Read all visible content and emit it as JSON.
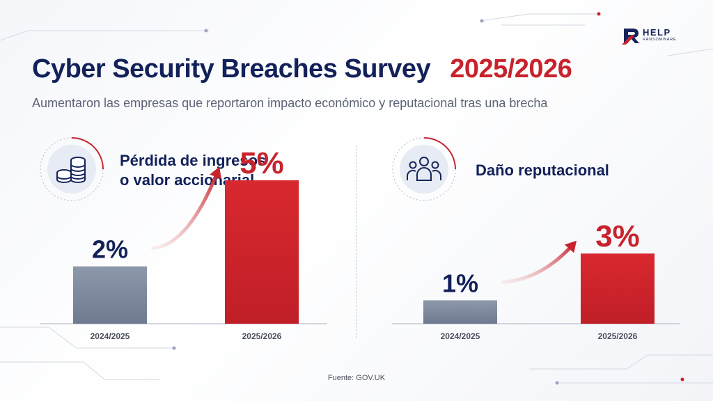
{
  "header": {
    "title": "Cyber Security Breaches Survey",
    "title_year": "2025/2026",
    "subtitle": "Aumentaron las empresas que reportaron impacto económico y reputacional tras una brecha"
  },
  "logo": {
    "brand": "HELP",
    "tagline": "RANSOMWARE",
    "icon": "r-logo-icon"
  },
  "panels": [
    {
      "label_line1": "Pérdida de ingresos",
      "label_line2": "o valor accionarial",
      "icon": "coins-icon"
    },
    {
      "label_line1": "Daño reputacional",
      "label_line2": "",
      "icon": "people-group-icon"
    }
  ],
  "source": "Fuente: GOV.UK",
  "colors": {
    "navy": "#13215a",
    "red": "#c8232c",
    "bar_gray": "#7d889d",
    "bar_red": "#d1262d"
  },
  "chart_data": [
    {
      "type": "bar",
      "categories": [
        "2024/2025",
        "2025/2026"
      ],
      "values": [
        2,
        5
      ],
      "value_labels": [
        "2%",
        "5%"
      ],
      "title": "Pérdida de ingresos o valor accionarial",
      "ylim": [
        0,
        6
      ],
      "grid": false
    },
    {
      "type": "bar",
      "categories": [
        "2024/2025",
        "2025/2026"
      ],
      "values": [
        1,
        3
      ],
      "value_labels": [
        "1%",
        "3%"
      ],
      "title": "Daño reputacional",
      "ylim": [
        0,
        4
      ],
      "grid": false
    }
  ]
}
